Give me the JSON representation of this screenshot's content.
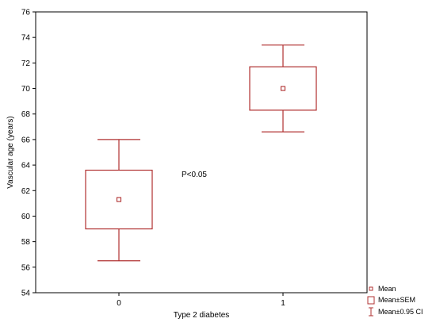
{
  "chart_data": {
    "type": "box",
    "xlabel": "Type 2 diabetes",
    "ylabel": "Vascular age (years)",
    "ylim": [
      54,
      76
    ],
    "y_ticks": [
      "54",
      "56",
      "58",
      "60",
      "62",
      "64",
      "66",
      "68",
      "70",
      "72",
      "74",
      "76"
    ],
    "categories": [
      "0",
      "1"
    ],
    "groups": [
      {
        "category": "0",
        "mean": 61.3,
        "sem_low": 59.0,
        "sem_high": 63.6,
        "ci_low": 56.5,
        "ci_high": 66.0
      },
      {
        "category": "1",
        "mean": 70.0,
        "sem_low": 68.3,
        "sem_high": 71.7,
        "ci_low": 66.6,
        "ci_high": 73.4
      }
    ],
    "annotation": "P<0.05",
    "legend": {
      "placement": "bottom-right",
      "items": [
        "Mean",
        "Mean±SEM",
        "Mean±0.95 CI"
      ]
    },
    "grid": false,
    "color": "#b03030"
  }
}
